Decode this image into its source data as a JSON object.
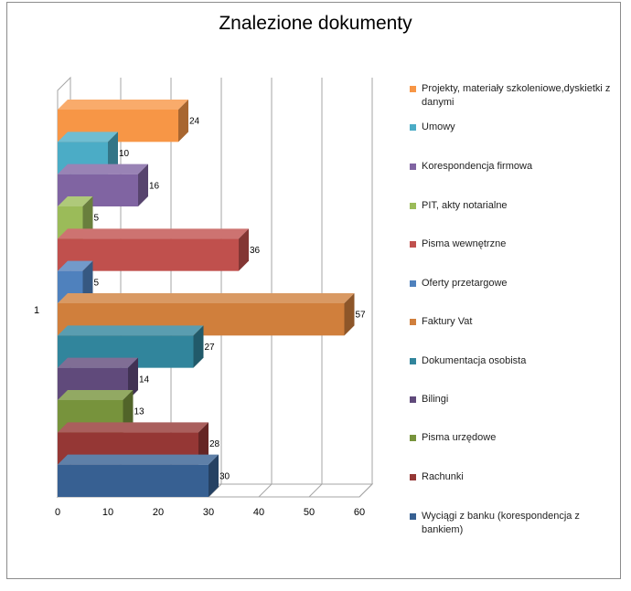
{
  "chart_data": {
    "type": "bar",
    "orientation": "horizontal",
    "style": "3d-clustered",
    "title": "Znalezione dokumenty",
    "category_label": "1",
    "xlim": [
      0,
      60
    ],
    "xticks": [
      0,
      10,
      20,
      30,
      40,
      50,
      60
    ],
    "grid": true,
    "legend_position": "right",
    "series": [
      {
        "name": "Projekty, materiały szkoleniowe,dyskietki z danymi",
        "value": 24,
        "color": "#f79646"
      },
      {
        "name": "Umowy",
        "value": 10,
        "color": "#4bacc6"
      },
      {
        "name": "Korespondencja firmowa",
        "value": 16,
        "color": "#8064a2"
      },
      {
        "name": "PIT, akty notarialne",
        "value": 5,
        "color": "#9bbb59"
      },
      {
        "name": "Pisma wewnętrzne",
        "value": 36,
        "color": "#c0504d"
      },
      {
        "name": "Oferty przetargowe",
        "value": 5,
        "color": "#4f81bd"
      },
      {
        "name": "Faktury Vat",
        "value": 57,
        "color": "#d07f3c"
      },
      {
        "name": "Dokumentacja osobista",
        "value": 27,
        "color": "#31859c"
      },
      {
        "name": "Bilingi",
        "value": 14,
        "color": "#604a7b"
      },
      {
        "name": "Pisma urzędowe",
        "value": 13,
        "color": "#77933c"
      },
      {
        "name": "Rachunki",
        "value": 28,
        "color": "#953735"
      },
      {
        "name": "Wyciągi z banku (korespondencja z bankiem)",
        "value": 30,
        "color": "#376092"
      }
    ]
  }
}
